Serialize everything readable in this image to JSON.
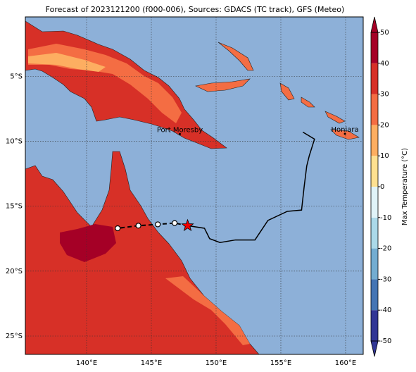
{
  "title": "Forecast of 2023121200 (f000-006), Sources: GDACS (TC track), GFS (Meteo)",
  "map": {
    "lonlim": [
      135.27,
      161.36
    ],
    "latlim": [
      -26.41,
      -0.43
    ],
    "lon_ticks": [
      {
        "value": 140,
        "label": "140°E"
      },
      {
        "value": 145,
        "label": "145°E"
      },
      {
        "value": 150,
        "label": "150°E"
      },
      {
        "value": 155,
        "label": "155°E"
      },
      {
        "value": 160,
        "label": "160°E"
      }
    ],
    "lat_ticks": [
      {
        "value": -5,
        "label": "5°S"
      },
      {
        "value": -10,
        "label": "10°S"
      },
      {
        "value": -15,
        "label": "15°S"
      },
      {
        "value": -20,
        "label": "20°S"
      },
      {
        "value": -25,
        "label": "25°S"
      }
    ],
    "places": [
      {
        "name": "Port Moresby",
        "lon": 147.2,
        "lat": -9.45
      },
      {
        "name": "Honiara",
        "lon": 159.95,
        "lat": -9.43
      }
    ],
    "track": {
      "lon": [
        156.7,
        157.6,
        157.2,
        157.0,
        156.8,
        156.6,
        155.5,
        154.0,
        153.0,
        151.5,
        150.3,
        149.5,
        149.1,
        147.8
      ],
      "lat": [
        -9.3,
        -9.84,
        -11.1,
        -11.9,
        -13.5,
        -15.3,
        -15.4,
        -16.1,
        -17.6,
        -17.6,
        -17.8,
        -17.5,
        -16.7,
        -16.5
      ]
    },
    "forecast": {
      "lon": [
        147.8,
        146.8,
        145.5,
        144.0,
        142.4
      ],
      "lat": [
        -16.5,
        -16.3,
        -16.4,
        -16.5,
        -16.7
      ]
    }
  },
  "colorbar": {
    "label": "Max Temperature (°C)",
    "lim": [
      -50,
      50
    ],
    "ticks": [
      -50,
      -40,
      -30,
      -20,
      -10,
      0,
      10,
      20,
      30,
      40,
      50
    ],
    "colors": [
      "#313695",
      "#4575b4",
      "#74add1",
      "#abd9e9",
      "#e0f3f8",
      "#fee090",
      "#fdae61",
      "#f46d43",
      "#d73027",
      "#a50026"
    ]
  }
}
